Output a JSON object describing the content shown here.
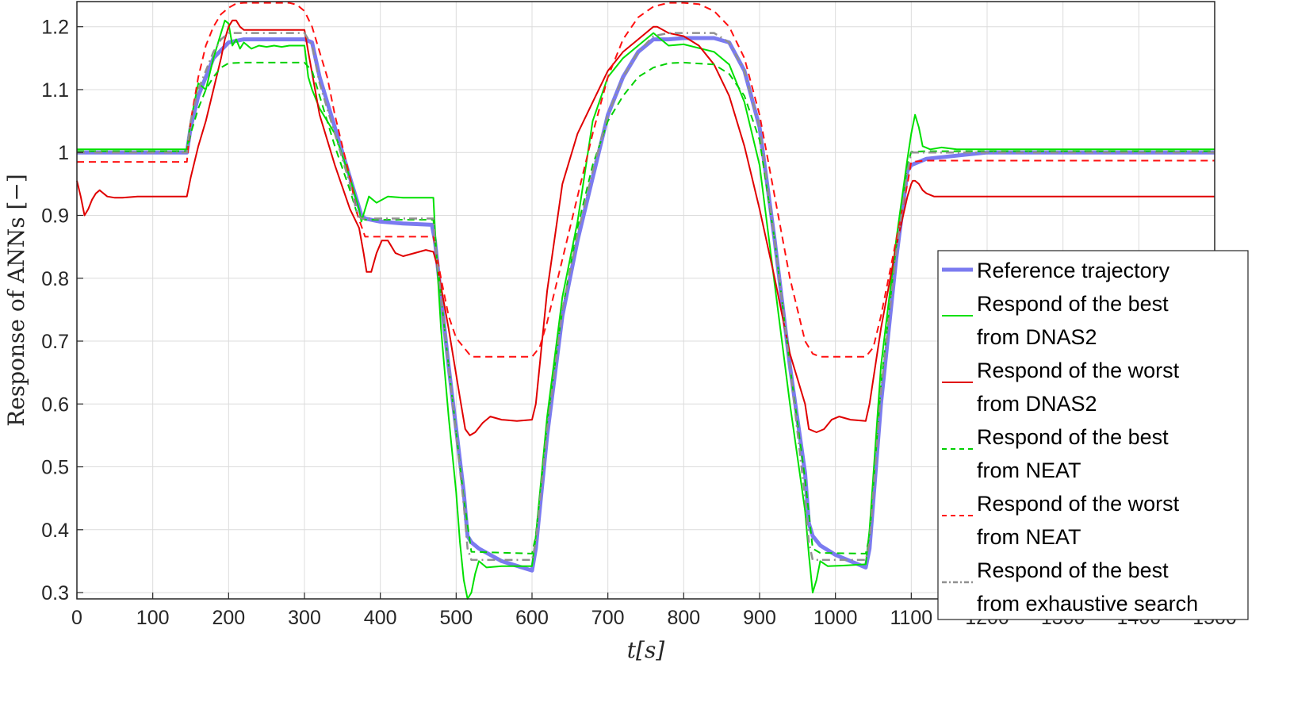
{
  "chart_data": {
    "type": "line",
    "xlabel": "t[s]",
    "ylabel": "Response of ANNs [−]",
    "xlim": [
      0,
      1500
    ],
    "ylim": [
      0.29,
      1.24
    ],
    "xticks": [
      0,
      100,
      200,
      300,
      400,
      500,
      600,
      700,
      800,
      900,
      1000,
      1100,
      1200,
      1300,
      1400,
      1500
    ],
    "xtick_labels": [
      "0",
      "100",
      "200",
      "300",
      "400",
      "500",
      "600",
      "700",
      "800",
      "900",
      "1000",
      "1100",
      "1200",
      "1300",
      "1400",
      "1500"
    ],
    "yticks": [
      0.3,
      0.4,
      0.5,
      0.6,
      0.7,
      0.8,
      0.9,
      1.0,
      1.1,
      1.2
    ],
    "ytick_labels": [
      "0.3",
      "0.4",
      "0.5",
      "0.6",
      "0.7",
      "0.8",
      "0.9",
      "1",
      "1.1",
      "1.2"
    ],
    "grid": true,
    "legend_position": "bottom-right",
    "series": [
      {
        "name": "Reference trajectory",
        "color": "#7b7bf0",
        "style": "solid",
        "width": 5,
        "x": [
          0,
          145,
          150,
          160,
          170,
          180,
          200,
          220,
          300,
          310,
          320,
          340,
          360,
          370,
          375,
          380,
          400,
          430,
          468,
          472,
          490,
          510,
          515,
          520,
          530,
          560,
          600,
          605,
          620,
          640,
          660,
          680,
          700,
          720,
          740,
          760,
          780,
          800,
          840,
          860,
          880,
          900,
          920,
          940,
          960,
          965,
          970,
          980,
          1000,
          1040,
          1045,
          1060,
          1080,
          1095,
          1100,
          1120,
          1160,
          1200,
          1300,
          1500
        ],
        "y": [
          1.0,
          1.0,
          1.04,
          1.09,
          1.12,
          1.15,
          1.175,
          1.18,
          1.18,
          1.175,
          1.12,
          1.04,
          0.96,
          0.92,
          0.9,
          0.895,
          0.89,
          0.887,
          0.885,
          0.86,
          0.66,
          0.46,
          0.39,
          0.38,
          0.37,
          0.35,
          0.335,
          0.37,
          0.55,
          0.74,
          0.86,
          0.96,
          1.06,
          1.12,
          1.16,
          1.18,
          1.18,
          1.182,
          1.182,
          1.175,
          1.13,
          1.04,
          0.86,
          0.66,
          0.49,
          0.41,
          0.39,
          0.375,
          0.36,
          0.34,
          0.37,
          0.6,
          0.83,
          0.97,
          0.98,
          0.99,
          0.995,
          1.0,
          1.0,
          1.0
        ]
      },
      {
        "name": "Respond of the best from DNAS2",
        "color": "#00e000",
        "style": "solid",
        "width": 2,
        "x": [
          0,
          145,
          150,
          160,
          170,
          180,
          190,
          195,
          200,
          205,
          210,
          215,
          220,
          230,
          240,
          250,
          260,
          270,
          280,
          300,
          305,
          310,
          320,
          340,
          360,
          372,
          375,
          380,
          385,
          395,
          410,
          430,
          470,
          472,
          480,
          490,
          500,
          505,
          510,
          515,
          520,
          525,
          530,
          540,
          560,
          600,
          605,
          620,
          640,
          660,
          680,
          700,
          720,
          740,
          760,
          770,
          780,
          800,
          840,
          860,
          880,
          900,
          920,
          940,
          960,
          965,
          970,
          975,
          980,
          990,
          1010,
          1040,
          1045,
          1060,
          1080,
          1095,
          1100,
          1105,
          1110,
          1115,
          1125,
          1140,
          1160,
          1200,
          1300,
          1500
        ],
        "y": [
          1.005,
          1.005,
          1.05,
          1.11,
          1.1,
          1.15,
          1.19,
          1.21,
          1.205,
          1.17,
          1.18,
          1.165,
          1.175,
          1.165,
          1.17,
          1.168,
          1.17,
          1.168,
          1.17,
          1.17,
          1.12,
          1.1,
          1.07,
          1.03,
          0.96,
          0.91,
          0.89,
          0.91,
          0.93,
          0.92,
          0.93,
          0.928,
          0.928,
          0.88,
          0.72,
          0.58,
          0.46,
          0.38,
          0.32,
          0.29,
          0.3,
          0.33,
          0.35,
          0.34,
          0.342,
          0.342,
          0.39,
          0.58,
          0.77,
          0.89,
          1.05,
          1.12,
          1.15,
          1.17,
          1.19,
          1.18,
          1.17,
          1.172,
          1.16,
          1.14,
          1.08,
          0.98,
          0.79,
          0.6,
          0.43,
          0.36,
          0.3,
          0.32,
          0.35,
          0.342,
          0.343,
          0.345,
          0.4,
          0.66,
          0.86,
          0.99,
          1.03,
          1.06,
          1.04,
          1.01,
          1.005,
          1.008,
          1.005,
          1.005,
          1.005,
          1.005
        ]
      },
      {
        "name": "Respond of the worst from DNAS2",
        "color": "#e00000",
        "style": "solid",
        "width": 2,
        "x": [
          0,
          5,
          10,
          15,
          20,
          25,
          30,
          35,
          40,
          50,
          60,
          80,
          145,
          150,
          160,
          170,
          180,
          190,
          195,
          200,
          205,
          210,
          215,
          220,
          240,
          260,
          300,
          305,
          320,
          340,
          360,
          372,
          378,
          382,
          388,
          395,
          402,
          410,
          420,
          430,
          445,
          460,
          470,
          475,
          490,
          505,
          512,
          518,
          525,
          535,
          545,
          560,
          580,
          600,
          605,
          620,
          640,
          660,
          680,
          700,
          720,
          740,
          760,
          765,
          780,
          800,
          820,
          840,
          860,
          880,
          900,
          920,
          940,
          960,
          965,
          975,
          985,
          995,
          1005,
          1020,
          1040,
          1045,
          1060,
          1080,
          1095,
          1100,
          1102,
          1105,
          1110,
          1115,
          1120,
          1130,
          1140,
          1160,
          1200,
          1300,
          1500
        ],
        "y": [
          0.955,
          0.93,
          0.9,
          0.91,
          0.925,
          0.935,
          0.94,
          0.935,
          0.93,
          0.928,
          0.928,
          0.93,
          0.93,
          0.96,
          1.01,
          1.05,
          1.1,
          1.15,
          1.18,
          1.2,
          1.21,
          1.21,
          1.2,
          1.195,
          1.195,
          1.195,
          1.195,
          1.16,
          1.06,
          0.98,
          0.91,
          0.88,
          0.84,
          0.81,
          0.81,
          0.84,
          0.86,
          0.86,
          0.84,
          0.835,
          0.84,
          0.845,
          0.842,
          0.82,
          0.72,
          0.61,
          0.56,
          0.55,
          0.555,
          0.57,
          0.58,
          0.575,
          0.573,
          0.575,
          0.6,
          0.78,
          0.95,
          1.03,
          1.08,
          1.13,
          1.16,
          1.18,
          1.2,
          1.2,
          1.19,
          1.185,
          1.17,
          1.14,
          1.09,
          1.01,
          0.91,
          0.8,
          0.68,
          0.6,
          0.56,
          0.555,
          0.56,
          0.575,
          0.58,
          0.575,
          0.573,
          0.6,
          0.72,
          0.85,
          0.93,
          0.95,
          0.955,
          0.955,
          0.95,
          0.94,
          0.935,
          0.93,
          0.93,
          0.93,
          0.93,
          0.93,
          0.93
        ]
      },
      {
        "name": "Respond of the best from NEAT",
        "color": "#00d000",
        "style": "dashed",
        "width": 2,
        "x": [
          0,
          145,
          150,
          160,
          170,
          180,
          190,
          200,
          220,
          300,
          310,
          320,
          340,
          360,
          370,
          380,
          470,
          472,
          490,
          510,
          520,
          600,
          605,
          620,
          640,
          660,
          680,
          700,
          720,
          740,
          760,
          780,
          800,
          840,
          860,
          880,
          900,
          920,
          940,
          960,
          970,
          980,
          1040,
          1045,
          1060,
          1080,
          1095,
          1100,
          1120,
          1200,
          1500
        ],
        "y": [
          1.002,
          1.002,
          1.03,
          1.07,
          1.1,
          1.12,
          1.135,
          1.142,
          1.143,
          1.143,
          1.13,
          1.09,
          1.01,
          0.94,
          0.9,
          0.893,
          0.893,
          0.86,
          0.66,
          0.45,
          0.365,
          0.362,
          0.39,
          0.57,
          0.75,
          0.88,
          0.98,
          1.05,
          1.09,
          1.12,
          1.135,
          1.142,
          1.143,
          1.14,
          1.125,
          1.09,
          1.02,
          0.86,
          0.66,
          0.48,
          0.37,
          0.363,
          0.362,
          0.39,
          0.63,
          0.85,
          0.98,
          1.001,
          1.002,
          1.002,
          1.002
        ]
      },
      {
        "name": "Respond of the worst from NEAT",
        "color": "#ff1010",
        "style": "dashed",
        "width": 2,
        "x": [
          0,
          145,
          150,
          160,
          170,
          180,
          190,
          200,
          210,
          220,
          280,
          290,
          300,
          310,
          320,
          330,
          340,
          360,
          370,
          380,
          470,
          480,
          490,
          500,
          510,
          520,
          600,
          610,
          620,
          640,
          660,
          680,
          700,
          720,
          740,
          760,
          780,
          800,
          820,
          840,
          860,
          880,
          900,
          920,
          940,
          960,
          970,
          980,
          1040,
          1050,
          1060,
          1080,
          1095,
          1100,
          1120,
          1200,
          1500
        ],
        "y": [
          0.985,
          0.985,
          1.05,
          1.12,
          1.17,
          1.2,
          1.22,
          1.23,
          1.237,
          1.238,
          1.238,
          1.235,
          1.225,
          1.2,
          1.16,
          1.12,
          1.06,
          0.96,
          0.9,
          0.866,
          0.866,
          0.8,
          0.74,
          0.705,
          0.69,
          0.675,
          0.675,
          0.69,
          0.73,
          0.83,
          0.93,
          1.03,
          1.12,
          1.18,
          1.215,
          1.232,
          1.238,
          1.238,
          1.236,
          1.225,
          1.2,
          1.15,
          1.06,
          0.93,
          0.8,
          0.7,
          0.68,
          0.675,
          0.675,
          0.69,
          0.74,
          0.86,
          0.95,
          0.985,
          0.987,
          0.987,
          0.987
        ]
      },
      {
        "name": "Respond of the best from exhaustive search",
        "color": "#909090",
        "style": "dashdot",
        "width": 2.5,
        "x": [
          0,
          145,
          150,
          160,
          170,
          180,
          190,
          200,
          220,
          300,
          310,
          320,
          340,
          360,
          370,
          375,
          380,
          470,
          472,
          490,
          510,
          515,
          520,
          600,
          605,
          620,
          640,
          660,
          680,
          700,
          720,
          740,
          760,
          780,
          800,
          840,
          860,
          880,
          900,
          920,
          940,
          960,
          965,
          970,
          1040,
          1045,
          1060,
          1080,
          1095,
          1100,
          1120,
          1200,
          1500
        ],
        "y": [
          1.0,
          1.0,
          1.05,
          1.1,
          1.13,
          1.16,
          1.18,
          1.19,
          1.19,
          1.19,
          1.17,
          1.11,
          1.03,
          0.95,
          0.9,
          0.895,
          0.895,
          0.895,
          0.86,
          0.66,
          0.44,
          0.37,
          0.352,
          0.352,
          0.38,
          0.56,
          0.75,
          0.87,
          0.97,
          1.06,
          1.12,
          1.16,
          1.185,
          1.19,
          1.19,
          1.19,
          1.175,
          1.13,
          1.04,
          0.86,
          0.66,
          0.45,
          0.38,
          0.352,
          0.352,
          0.38,
          0.62,
          0.84,
          0.97,
          1.0,
          1.0,
          1.0,
          1.0
        ]
      }
    ],
    "legend": [
      {
        "line1": "Reference trajectory",
        "line2": ""
      },
      {
        "line1": "Respond of the best",
        "line2": "from DNAS2"
      },
      {
        "line1": "Respond of the worst",
        "line2": "from DNAS2"
      },
      {
        "line1": "Respond of the best",
        "line2": "from NEAT"
      },
      {
        "line1": "Respond of the worst",
        "line2": "from NEAT"
      },
      {
        "line1": "Respond of the best",
        "line2": "from exhaustive search"
      }
    ]
  }
}
